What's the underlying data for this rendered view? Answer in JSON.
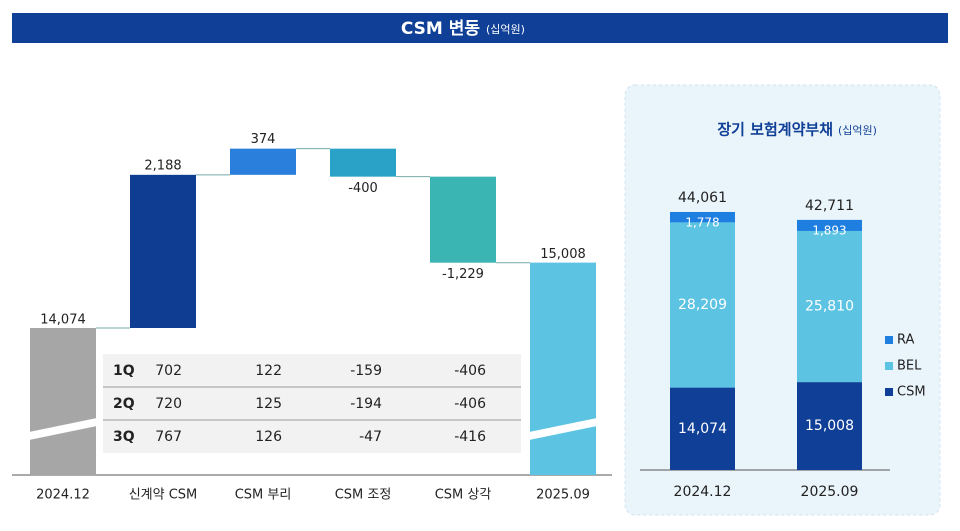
{
  "header": {
    "title": "CSM 변동",
    "unit": "(십억원)"
  },
  "chart_data": [
    {
      "type": "waterfall",
      "categories": [
        "2024.12",
        "신계약 CSM",
        "CSM 부리",
        "CSM 조정",
        "CSM 상각",
        "2025.09"
      ],
      "values": [
        14074,
        2188,
        374,
        -400,
        -1229,
        15008
      ],
      "value_labels": [
        "14,074",
        "2,188",
        "374",
        "-400",
        "-1,229",
        "15,008"
      ],
      "colors": [
        "#a6a6a6",
        "#0f3d91",
        "#2a7fdc",
        "#2aa2c8",
        "#3bb5b4",
        "#5cc3e3"
      ]
    },
    {
      "type": "stacked_bar",
      "title": "장기 보험계약부채",
      "subtitle": "(십억원)",
      "categories": [
        "2024.12",
        "2025.09"
      ],
      "series": [
        {
          "name": "CSM",
          "color": "#0f3f96",
          "values": [
            14074,
            15008
          ],
          "value_labels": [
            "14,074",
            "15,008"
          ]
        },
        {
          "name": "BEL",
          "color": "#5cc3e3",
          "values": [
            28209,
            25810
          ],
          "value_labels": [
            "28,209",
            "25,810"
          ]
        },
        {
          "name": "RA",
          "color": "#1f7fe0",
          "values": [
            1778,
            1893
          ],
          "value_labels": [
            "1,778",
            "1,893"
          ]
        }
      ],
      "totals": [
        44061,
        42711
      ],
      "total_labels": [
        "44,061",
        "42,711"
      ],
      "legend": "right"
    }
  ],
  "table": {
    "rows": [
      [
        "1Q",
        702,
        122,
        -159,
        -406
      ],
      [
        "2Q",
        720,
        125,
        -194,
        -406
      ],
      [
        "3Q",
        767,
        126,
        -47,
        -416
      ]
    ]
  }
}
